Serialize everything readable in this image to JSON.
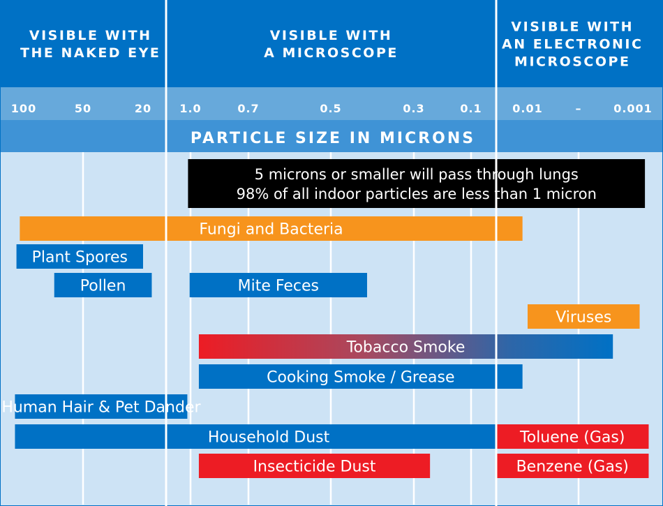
{
  "chart_data": {
    "type": "bar",
    "subtype": "range-bar",
    "title": "PARTICLE SIZE IN MICRONS",
    "xscale": "log",
    "xreversed": true,
    "unit": "microns",
    "sections": [
      {
        "label_lines": [
          "VISIBLE WITH",
          "THE NAKED EYE"
        ],
        "x_from": 150,
        "x_to": 13
      },
      {
        "label_lines": [
          "VISIBLE WITH",
          "A MICROSCOPE"
        ],
        "x_from": 13,
        "x_to": 0.05
      },
      {
        "label_lines": [
          "VISIBLE WITH",
          "AN ELECTRONIC",
          "MICROSCOPE"
        ],
        "x_from": 0.05,
        "x_to": 0.0003
      }
    ],
    "tick_labels": [
      {
        "label": "100",
        "value": 100
      },
      {
        "label": "50",
        "value": 50
      },
      {
        "label": "20",
        "value": 20
      },
      {
        "label": "1.0",
        "value": 1.0
      },
      {
        "label": "0.7",
        "value": 0.7
      },
      {
        "label": "0.5",
        "value": 0.5
      },
      {
        "label": "0.3",
        "value": 0.3
      },
      {
        "label": "0.1",
        "value": 0.1
      },
      {
        "label": "0.01",
        "value": 0.01
      },
      {
        "label": "–",
        "value": 0.003
      },
      {
        "label": "0.001",
        "value": 0.001
      }
    ],
    "gridlines": [
      50,
      1.0,
      0.7,
      0.5,
      0.3,
      0.1,
      0.003
    ],
    "note_lines": [
      "5 microns or smaller will pass through lungs",
      "98% of all indoor particles are less than 1 micron"
    ],
    "note_range": [
      1.3,
      0.0004
    ],
    "colors": {
      "header_blue": "#0071C5",
      "tick_band": "#67A9DB",
      "title_band": "#3F93D6",
      "grid_body": "#CDE3F5",
      "bar_blue": "#0071C5",
      "bar_orange": "#F7941D",
      "bar_red": "#ED1C24",
      "note_black": "#000000",
      "divider": "#FFFFFF"
    },
    "series": [
      {
        "name": "Fungi and Bacteria",
        "from": 120,
        "to": 0.013,
        "color": "orange"
      },
      {
        "name": "Plant Spores",
        "from": 140,
        "to": 20,
        "color": "blue"
      },
      {
        "name": "Pollen",
        "from": 70,
        "to": 17,
        "color": "blue"
      },
      {
        "name": "Viruses",
        "from": 0.01,
        "to": 0.0006,
        "color": "orange"
      },
      {
        "name": "Tobacco Smoke",
        "from": 0.95,
        "to": 0.0015,
        "color": "gradient"
      },
      {
        "name": "Cooking Smoke / Grease",
        "from": 0.95,
        "to": 0.013,
        "color": "blue"
      },
      {
        "name": "Human Hair & Pet Dander",
        "from": 150,
        "to": 1.4,
        "color": "blue"
      },
      {
        "name": "Household Dust",
        "from": 150,
        "to": 0.013,
        "color": "blue"
      },
      {
        "name": "Insecticide Dust",
        "from": 0.95,
        "to": 0.22,
        "color": "red"
      },
      {
        "name": "Mite Feces",
        "from": 1.1,
        "to": 0.4,
        "color": "blue"
      },
      {
        "name": "Toluene (Gas)",
        "from": 0.05,
        "to": 0.0003,
        "color": "red"
      },
      {
        "name": "Benzene (Gas)",
        "from": 0.05,
        "to": 0.0003,
        "color": "red"
      }
    ]
  }
}
